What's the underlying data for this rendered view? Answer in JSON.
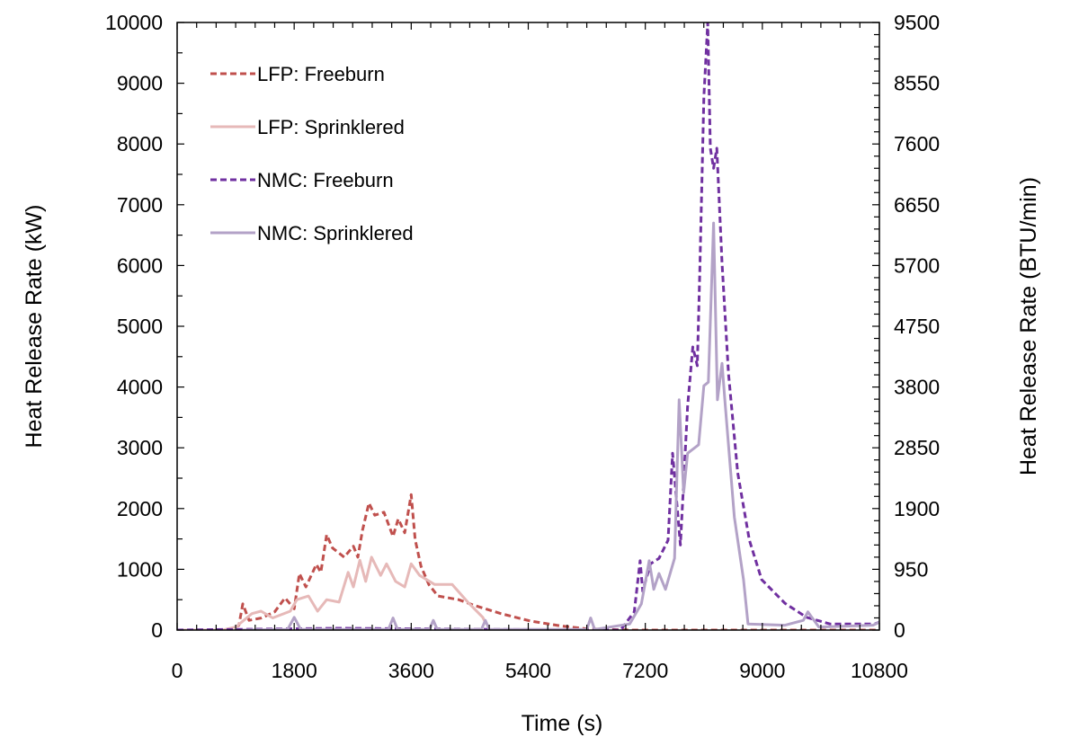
{
  "chart_data": {
    "type": "line",
    "title": "",
    "xlabel": "Time (s)",
    "ylabel": "Heat Release Rate (kW)",
    "y2label": "Heat Release Rate (BTU/min)",
    "xlim": [
      0,
      10800
    ],
    "ylim": [
      0,
      10000
    ],
    "y2lim": [
      0,
      9500
    ],
    "xticks": [
      "0",
      "1800",
      "3600",
      "5400",
      "7200",
      "9000",
      "10800"
    ],
    "xtick_values": [
      0,
      1800,
      3600,
      5400,
      7200,
      9000,
      10800
    ],
    "yticks": [
      "0",
      "1000",
      "2000",
      "3000",
      "4000",
      "5000",
      "6000",
      "7000",
      "8000",
      "9000",
      "10000"
    ],
    "y2ticks": [
      "0",
      "950",
      "1900",
      "2850",
      "3800",
      "4750",
      "5700",
      "6650",
      "7600",
      "8550",
      "9500"
    ],
    "grid": false,
    "legend_position": "top-left",
    "series": [
      {
        "name": "LFP: Freeburn",
        "color": "#c0504d",
        "style": "dashed",
        "x": [
          0,
          800,
          950,
          1010,
          1106,
          1300,
          1500,
          1660,
          1800,
          1880,
          1980,
          2140,
          2210,
          2300,
          2390,
          2570,
          2710,
          2780,
          2850,
          2950,
          3040,
          3180,
          3320,
          3400,
          3500,
          3600,
          3660,
          3750,
          3870,
          4010,
          4330,
          4560,
          4980,
          5430,
          5890,
          6300,
          7000,
          8000,
          9000,
          10800
        ],
        "y": [
          0,
          0,
          80,
          430,
          160,
          200,
          300,
          530,
          350,
          930,
          710,
          1080,
          950,
          1570,
          1350,
          1200,
          1380,
          1200,
          1640,
          2090,
          1890,
          1940,
          1540,
          1830,
          1600,
          2230,
          1490,
          1050,
          750,
          560,
          500,
          410,
          270,
          150,
          70,
          20,
          0,
          0,
          0,
          0
        ]
      },
      {
        "name": "LFP: Sprinklered",
        "color": "#e6b9b8",
        "style": "solid",
        "x": [
          0,
          700,
          900,
          1150,
          1290,
          1470,
          1740,
          1840,
          2020,
          2160,
          2300,
          2490,
          2630,
          2710,
          2810,
          2900,
          2990,
          3130,
          3220,
          3360,
          3500,
          3600,
          3730,
          3960,
          4230,
          4470,
          4700,
          4750
        ],
        "y": [
          0,
          0,
          50,
          270,
          310,
          200,
          310,
          500,
          560,
          310,
          500,
          460,
          950,
          710,
          1150,
          800,
          1200,
          900,
          1090,
          800,
          710,
          1090,
          900,
          750,
          750,
          460,
          210,
          100
        ]
      },
      {
        "name": "NMC: Freeburn",
        "color": "#7030a0",
        "style": "dashed",
        "x": [
          0,
          2500,
          5000,
          6820,
          7030,
          7120,
          7160,
          7280,
          7410,
          7550,
          7620,
          7740,
          7850,
          7930,
          8000,
          8040,
          8100,
          8160,
          8200,
          8250,
          8300,
          8380,
          8480,
          8620,
          8800,
          8990,
          9350,
          9680,
          10040,
          10730,
          10800
        ],
        "y": [
          0,
          30,
          10,
          0,
          300,
          1140,
          640,
          1090,
          1180,
          1480,
          2910,
          1400,
          3680,
          4660,
          4350,
          5980,
          8770,
          10000,
          7930,
          7600,
          7930,
          6040,
          4220,
          2590,
          1480,
          830,
          440,
          210,
          100,
          100,
          130
        ]
      },
      {
        "name": "NMC: Sprinklered",
        "color": "#b3a2c7",
        "style": "solid",
        "x": [
          1000,
          1700,
          1800,
          1900,
          3250,
          3320,
          3390,
          3880,
          3940,
          4000,
          4680,
          4740,
          4800,
          6300,
          6360,
          6420,
          6960,
          7140,
          7260,
          7330,
          7410,
          7510,
          7650,
          7720,
          7790,
          7850,
          8020,
          8100,
          8170,
          8250,
          8310,
          8380,
          8430,
          8570,
          8710,
          8780,
          9350,
          9630,
          9700,
          9870,
          10700,
          10800
        ],
        "y": [
          0,
          10,
          210,
          10,
          10,
          200,
          10,
          10,
          160,
          10,
          10,
          160,
          10,
          10,
          200,
          10,
          100,
          430,
          1140,
          670,
          930,
          670,
          1180,
          3790,
          2260,
          2910,
          3050,
          4020,
          4080,
          6700,
          3790,
          4390,
          3700,
          1860,
          830,
          100,
          80,
          160,
          300,
          50,
          80,
          130
        ]
      }
    ]
  }
}
